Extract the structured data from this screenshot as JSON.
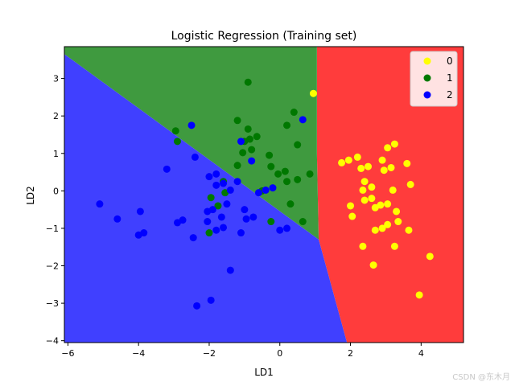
{
  "chart_data": {
    "type": "scatter",
    "title": "Logistic Regression (Training set)",
    "xlabel": "LD1",
    "ylabel": "LD2",
    "xlim": [
      -6.1,
      5.2
    ],
    "ylim": [
      -4.05,
      3.85
    ],
    "xticks": [
      -6,
      -4,
      -2,
      0,
      2,
      4
    ],
    "yticks": [
      -4,
      -3,
      -2,
      -1,
      0,
      1,
      2,
      3
    ],
    "legend_position": "top-right",
    "regions": [
      {
        "class": "0",
        "color": "#ff3c3c",
        "polygon": [
          [
            1.05,
            3.85
          ],
          [
            5.2,
            3.85
          ],
          [
            5.2,
            -4.05
          ],
          [
            1.9,
            -4.05
          ],
          [
            1.1,
            -1.3
          ],
          [
            1.05,
            1.0
          ]
        ]
      },
      {
        "class": "1",
        "color": "#3f9a3f",
        "polygon": [
          [
            -6.1,
            3.85
          ],
          [
            1.05,
            3.85
          ],
          [
            1.05,
            1.0
          ],
          [
            1.1,
            -1.3
          ],
          [
            -6.1,
            3.65
          ]
        ]
      },
      {
        "class": "2",
        "color": "#4040ff",
        "polygon": [
          [
            -6.1,
            3.65
          ],
          [
            1.1,
            -1.3
          ],
          [
            1.9,
            -4.05
          ],
          [
            -6.1,
            -4.05
          ]
        ]
      }
    ],
    "series": [
      {
        "name": "0",
        "color": "#ffff00",
        "points": [
          [
            0.95,
            2.6
          ],
          [
            1.75,
            0.75
          ],
          [
            1.95,
            0.82
          ],
          [
            2.2,
            0.9
          ],
          [
            2.3,
            0.6
          ],
          [
            2.5,
            0.65
          ],
          [
            2.4,
            0.25
          ],
          [
            2.35,
            0.02
          ],
          [
            2.6,
            0.1
          ],
          [
            2.4,
            -0.25
          ],
          [
            2.6,
            -0.2
          ],
          [
            2.0,
            -0.4
          ],
          [
            2.05,
            -0.68
          ],
          [
            2.7,
            -0.45
          ],
          [
            2.85,
            -0.38
          ],
          [
            3.05,
            -0.35
          ],
          [
            3.2,
            0.02
          ],
          [
            3.3,
            -0.55
          ],
          [
            3.35,
            -0.82
          ],
          [
            3.05,
            -0.9
          ],
          [
            2.9,
            -1.0
          ],
          [
            2.7,
            -1.05
          ],
          [
            2.35,
            -1.48
          ],
          [
            2.65,
            -1.98
          ],
          [
            3.25,
            -1.48
          ],
          [
            3.65,
            -1.05
          ],
          [
            3.05,
            1.15
          ],
          [
            3.25,
            1.25
          ],
          [
            3.6,
            0.73
          ],
          [
            3.15,
            0.62
          ],
          [
            2.9,
            0.82
          ],
          [
            2.95,
            0.55
          ],
          [
            3.7,
            0.17
          ],
          [
            3.95,
            -2.78
          ],
          [
            4.25,
            -1.75
          ]
        ]
      },
      {
        "name": "1",
        "color": "#007800",
        "points": [
          [
            -0.9,
            2.9
          ],
          [
            -1.2,
            1.88
          ],
          [
            -0.9,
            1.65
          ],
          [
            -0.85,
            1.38
          ],
          [
            -0.65,
            1.45
          ],
          [
            -1.0,
            1.32
          ],
          [
            -0.8,
            1.1
          ],
          [
            -1.05,
            1.02
          ],
          [
            -1.2,
            0.68
          ],
          [
            -0.3,
            0.95
          ],
          [
            -0.25,
            0.65
          ],
          [
            -0.05,
            0.45
          ],
          [
            0.15,
            0.52
          ],
          [
            0.2,
            0.25
          ],
          [
            0.5,
            0.3
          ],
          [
            0.85,
            0.45
          ],
          [
            0.2,
            1.75
          ],
          [
            0.4,
            2.1
          ],
          [
            0.5,
            1.23
          ],
          [
            -2.95,
            1.6
          ],
          [
            -2.9,
            1.32
          ],
          [
            -1.6,
            0.25
          ],
          [
            -1.55,
            -0.05
          ],
          [
            -1.75,
            -0.4
          ],
          [
            -1.95,
            -0.18
          ],
          [
            -2.0,
            -1.12
          ],
          [
            -0.25,
            -0.82
          ],
          [
            0.3,
            -0.35
          ],
          [
            0.65,
            -0.82
          ],
          [
            -0.5,
            0.0
          ]
        ]
      },
      {
        "name": "2",
        "color": "#0000ff",
        "points": [
          [
            -2.5,
            1.75
          ],
          [
            0.65,
            1.9
          ],
          [
            -1.1,
            1.32
          ],
          [
            -0.8,
            0.8
          ],
          [
            -2.4,
            0.9
          ],
          [
            -3.2,
            0.58
          ],
          [
            -2.0,
            0.38
          ],
          [
            -1.8,
            0.45
          ],
          [
            -1.8,
            0.15
          ],
          [
            -1.6,
            0.2
          ],
          [
            -1.4,
            0.02
          ],
          [
            -1.2,
            0.25
          ],
          [
            -0.6,
            -0.05
          ],
          [
            -0.4,
            0.02
          ],
          [
            -0.2,
            0.08
          ],
          [
            -2.05,
            -0.55
          ],
          [
            -1.9,
            -0.5
          ],
          [
            -1.65,
            -0.7
          ],
          [
            -1.5,
            -0.35
          ],
          [
            -1.0,
            -0.5
          ],
          [
            -0.95,
            -0.75
          ],
          [
            -0.75,
            -0.7
          ],
          [
            -2.05,
            -0.82
          ],
          [
            -2.75,
            -0.78
          ],
          [
            -2.9,
            -0.85
          ],
          [
            -1.6,
            -0.98
          ],
          [
            -1.8,
            -1.05
          ],
          [
            -1.1,
            -1.12
          ],
          [
            -2.45,
            -1.25
          ],
          [
            -5.1,
            -0.35
          ],
          [
            -4.6,
            -0.75
          ],
          [
            -3.95,
            -0.55
          ],
          [
            -4.0,
            -1.18
          ],
          [
            -3.85,
            -1.12
          ],
          [
            -1.4,
            -2.12
          ],
          [
            -2.35,
            -3.07
          ],
          [
            -1.95,
            -2.92
          ],
          [
            0.0,
            -1.05
          ],
          [
            0.2,
            -1.0
          ]
        ]
      }
    ]
  },
  "watermark": "CSDN @东木月"
}
